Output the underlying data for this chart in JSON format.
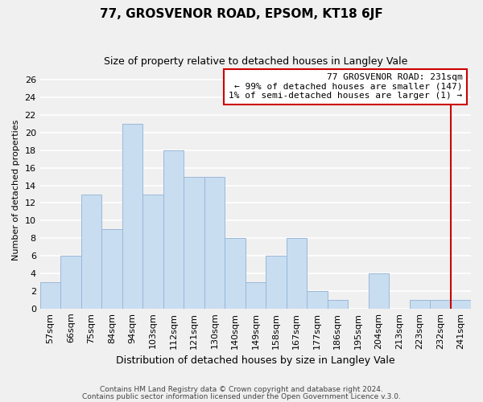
{
  "title": "77, GROSVENOR ROAD, EPSOM, KT18 6JF",
  "subtitle": "Size of property relative to detached houses in Langley Vale",
  "xlabel": "Distribution of detached houses by size in Langley Vale",
  "ylabel": "Number of detached properties",
  "bar_labels": [
    "57sqm",
    "66sqm",
    "75sqm",
    "84sqm",
    "94sqm",
    "103sqm",
    "112sqm",
    "121sqm",
    "130sqm",
    "140sqm",
    "149sqm",
    "158sqm",
    "167sqm",
    "177sqm",
    "186sqm",
    "195sqm",
    "204sqm",
    "213sqm",
    "223sqm",
    "232sqm",
    "241sqm"
  ],
  "bar_heights": [
    3,
    6,
    13,
    9,
    21,
    13,
    18,
    15,
    15,
    8,
    3,
    6,
    8,
    2,
    1,
    0,
    4,
    0,
    1,
    1,
    1
  ],
  "bar_color": "#c8ddf0",
  "bar_edgecolor": "#9ab8d8",
  "ylim": [
    0,
    27
  ],
  "yticks": [
    0,
    2,
    4,
    6,
    8,
    10,
    12,
    14,
    16,
    18,
    20,
    22,
    24,
    26
  ],
  "property_line_color": "#cc0000",
  "annotation_line1": "77 GROSVENOR ROAD: 231sqm",
  "annotation_line2": "← 99% of detached houses are smaller (147)",
  "annotation_line3": "1% of semi-detached houses are larger (1) →",
  "footer1": "Contains HM Land Registry data © Crown copyright and database right 2024.",
  "footer2": "Contains public sector information licensed under the Open Government Licence v.3.0.",
  "background_color": "#f0f0f0",
  "grid_color": "#ffffff",
  "title_fontsize": 11,
  "subtitle_fontsize": 9,
  "ylabel_fontsize": 8,
  "xlabel_fontsize": 9,
  "tick_fontsize": 8,
  "annot_fontsize": 8
}
